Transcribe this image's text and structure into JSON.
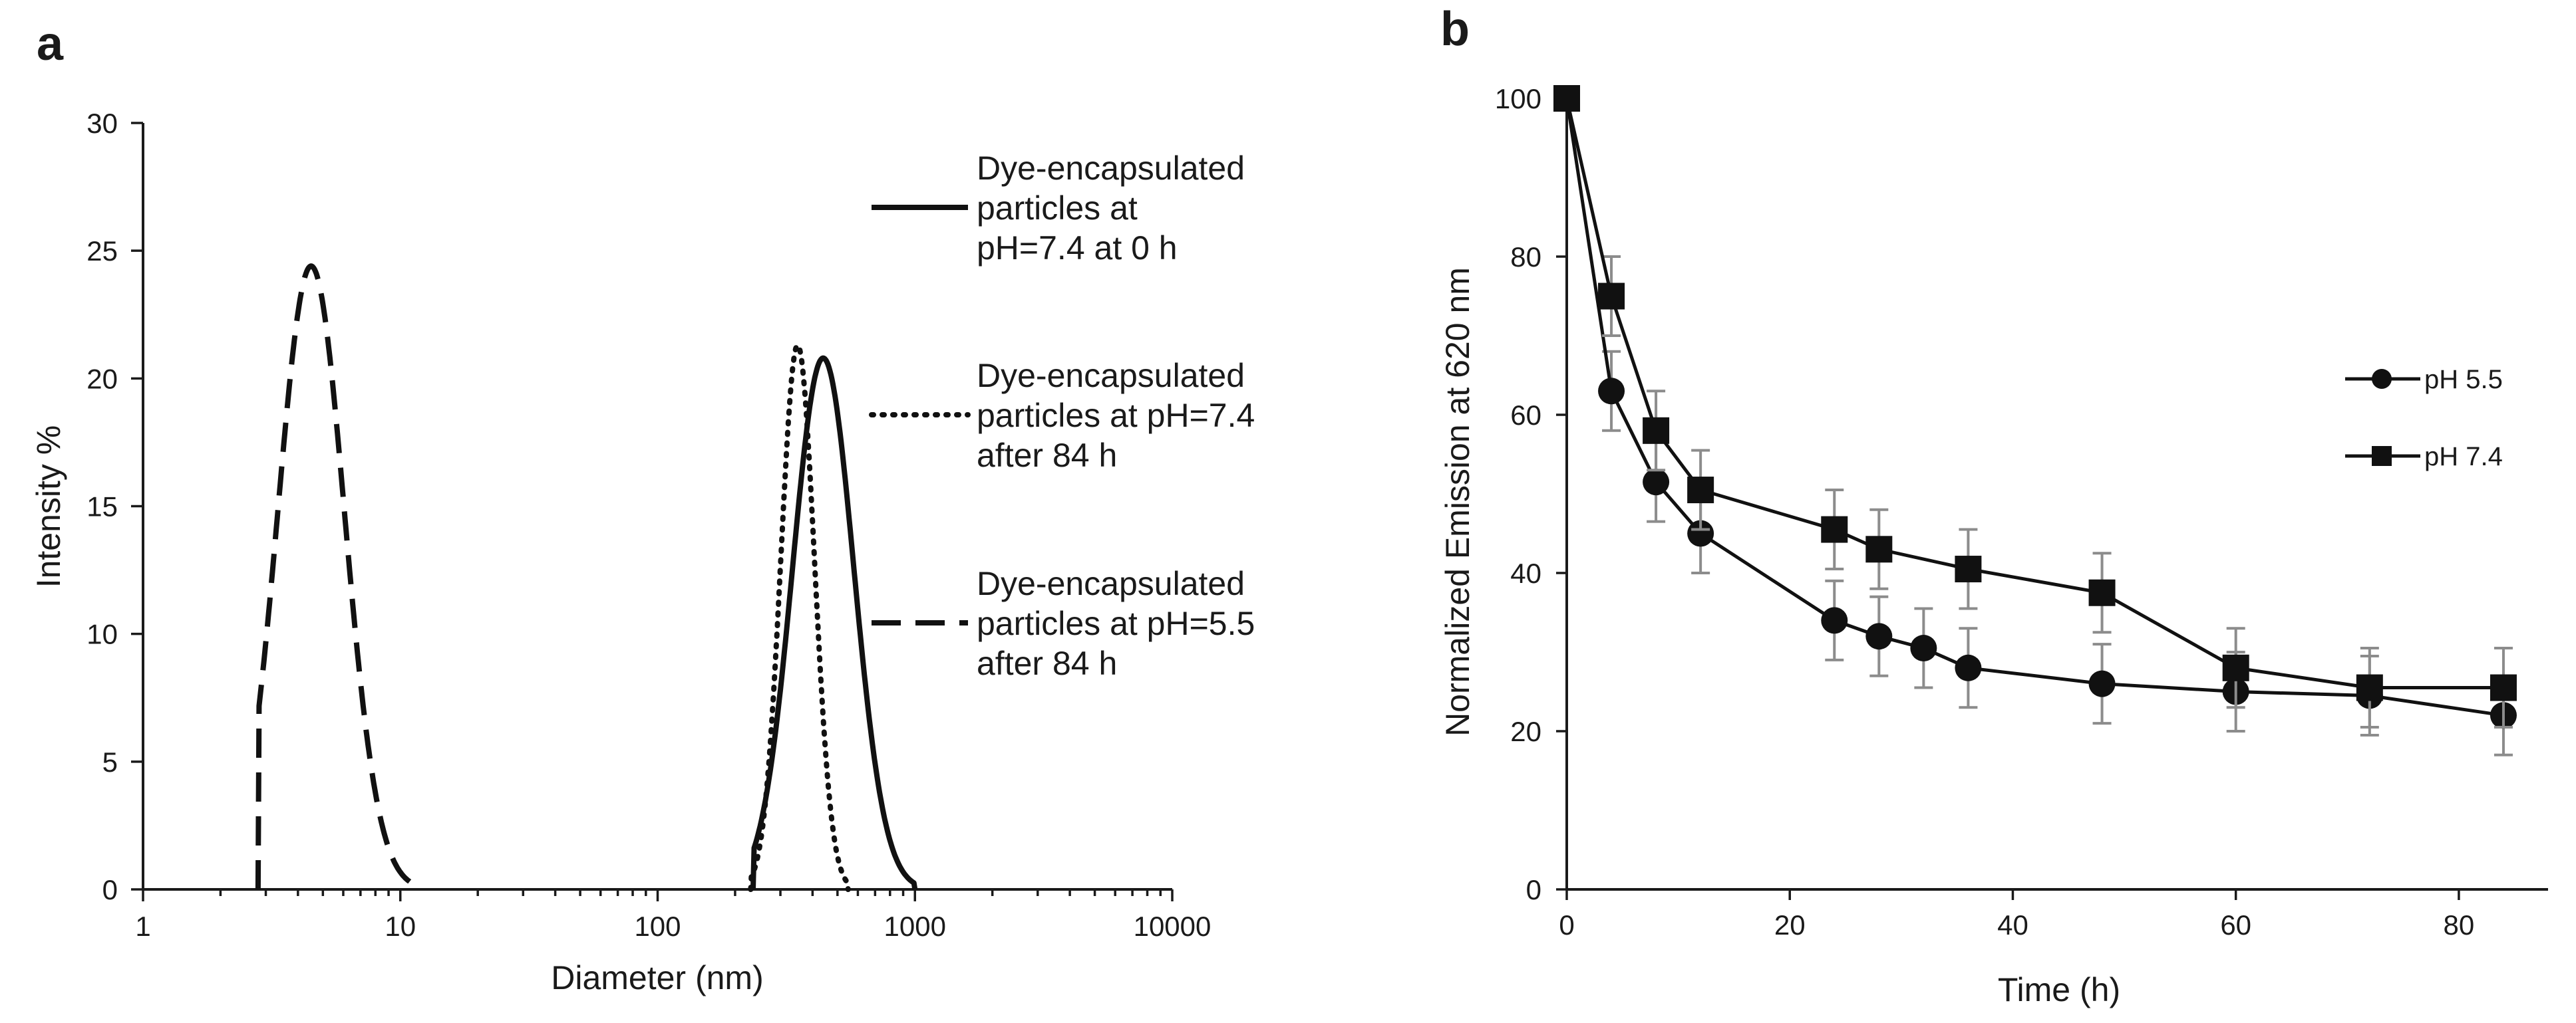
{
  "chart_data": [
    {
      "panel_label": "a",
      "type": "line",
      "xscale": "log",
      "xlabel": "Diameter (nm)",
      "ylabel": "Intensity %",
      "xlim": [
        1,
        10000
      ],
      "ylim": [
        0,
        30
      ],
      "xticks": [
        1,
        10,
        100,
        1000,
        10000
      ],
      "xtick_labels": [
        "1",
        "10",
        "100",
        "1000",
        "10000"
      ],
      "yticks": [
        0,
        5,
        10,
        15,
        20,
        25,
        30
      ],
      "ytick_labels": [
        "0",
        "5",
        "10",
        "15",
        "20",
        "25",
        "30"
      ],
      "legend_position": "right",
      "series": [
        {
          "name": "Dye-encapsulated particles at pH=7.4 at 0 h",
          "legend_lines": [
            "Dye-encapsulated",
            "particles at",
            "pH=7.4 at 0 h"
          ],
          "line_style": "solid",
          "peak_x": 440,
          "peak_y": 20.8,
          "range": [
            235,
            1000
          ]
        },
        {
          "name": "Dye-encapsulated particles at pH=7.4 after 84 h",
          "legend_lines": [
            "Dye-encapsulated",
            "particles at pH=7.4",
            "after 84 h"
          ],
          "line_style": "dotted",
          "peak_x": 350,
          "peak_y": 21.3,
          "range": [
            230,
            550
          ]
        },
        {
          "name": "Dye-encapsulated particles at pH=5.5 after 84 h",
          "legend_lines": [
            "Dye-encapsulated",
            "particles at pH=5.5",
            "after 84 h"
          ],
          "line_style": "dashed",
          "peak_x": 4.5,
          "peak_y": 24.4,
          "range": [
            2.8,
            11
          ]
        }
      ]
    },
    {
      "panel_label": "b",
      "type": "line",
      "xlabel": "Time (h)",
      "ylabel": "Normalized Emission at 620 nm",
      "xlim": [
        0,
        88
      ],
      "ylim": [
        0,
        100
      ],
      "xticks": [
        0,
        20,
        40,
        60,
        80
      ],
      "xtick_labels": [
        "0",
        "20",
        "40",
        "60",
        "80"
      ],
      "yticks": [
        0,
        20,
        40,
        60,
        80,
        100
      ],
      "ytick_labels": [
        "0",
        "20",
        "40",
        "60",
        "80",
        "100"
      ],
      "legend_position": "right",
      "series": [
        {
          "name": "pH 5.5",
          "marker": "circle",
          "x": [
            0,
            4,
            8,
            12,
            24,
            28,
            32,
            36,
            48,
            60,
            72,
            84
          ],
          "y": [
            100,
            63,
            51.5,
            45,
            34,
            32,
            30.5,
            28,
            26,
            25,
            24.5,
            22
          ],
          "err": [
            0,
            5,
            5,
            5,
            5,
            5,
            5,
            5,
            5,
            5,
            5,
            5
          ]
        },
        {
          "name": "pH 7.4",
          "marker": "square",
          "x": [
            0,
            4,
            8,
            12,
            24,
            28,
            36,
            48,
            60,
            72,
            84
          ],
          "y": [
            100,
            75,
            58,
            50.5,
            45.5,
            43,
            40.5,
            37.5,
            28,
            25.5,
            25.5
          ],
          "err": [
            0,
            5,
            5,
            5,
            5,
            5,
            5,
            5,
            5,
            5,
            5
          ]
        }
      ]
    }
  ]
}
